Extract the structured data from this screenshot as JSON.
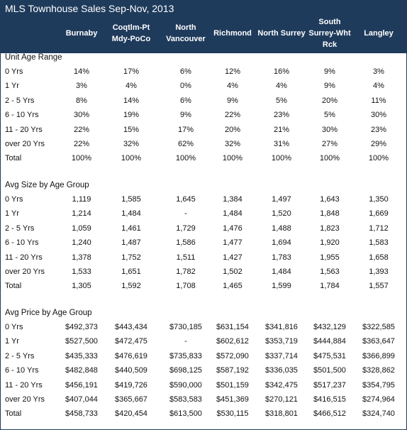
{
  "title": "MLS Townhouse Sales Sep-Nov, 2013",
  "columns": [
    {
      "line1": "Burnaby",
      "line2": ""
    },
    {
      "line1": "Coqtlm-Pt",
      "line2": "Mdy-PoCo"
    },
    {
      "line1": "North",
      "line2": "Vancouver"
    },
    {
      "line1": "Richmond",
      "line2": ""
    },
    {
      "line1": "North Surrey",
      "line2": ""
    },
    {
      "line1": "South",
      "line2": "Surrey-Wht",
      "line3": "Rck"
    },
    {
      "line1": "Langley",
      "line2": ""
    }
  ],
  "sections": [
    {
      "title": "Unit Age Range",
      "rows": [
        {
          "label": "0 Yrs",
          "values": [
            "14%",
            "17%",
            "6%",
            "12%",
            "16%",
            "9%",
            "3%"
          ]
        },
        {
          "label": "1 Yr",
          "values": [
            "3%",
            "4%",
            "0%",
            "4%",
            "4%",
            "9%",
            "4%"
          ]
        },
        {
          "label": "2 - 5 Yrs",
          "values": [
            "8%",
            "14%",
            "6%",
            "9%",
            "5%",
            "20%",
            "11%"
          ]
        },
        {
          "label": "6 - 10 Yrs",
          "values": [
            "30%",
            "19%",
            "9%",
            "22%",
            "23%",
            "5%",
            "30%"
          ]
        },
        {
          "label": "11 - 20 Yrs",
          "values": [
            "22%",
            "15%",
            "17%",
            "20%",
            "21%",
            "30%",
            "23%"
          ]
        },
        {
          "label": "over 20 Yrs",
          "values": [
            "22%",
            "32%",
            "62%",
            "32%",
            "31%",
            "27%",
            "29%"
          ]
        },
        {
          "label": "Total",
          "values": [
            "100%",
            "100%",
            "100%",
            "100%",
            "100%",
            "100%",
            "100%"
          ]
        }
      ]
    },
    {
      "title": "Avg Size by Age Group",
      "rows": [
        {
          "label": "0 Yrs",
          "values": [
            "1,119",
            "1,585",
            "1,645",
            "1,384",
            "1,497",
            "1,643",
            "1,350"
          ]
        },
        {
          "label": "1 Yr",
          "values": [
            "1,214",
            "1,484",
            "-",
            "1,484",
            "1,520",
            "1,848",
            "1,669"
          ]
        },
        {
          "label": "2 - 5 Yrs",
          "values": [
            "1,059",
            "1,461",
            "1,729",
            "1,476",
            "1,488",
            "1,823",
            "1,712"
          ]
        },
        {
          "label": "6 - 10 Yrs",
          "values": [
            "1,240",
            "1,487",
            "1,586",
            "1,477",
            "1,694",
            "1,920",
            "1,583"
          ]
        },
        {
          "label": "11 - 20 Yrs",
          "values": [
            "1,378",
            "1,752",
            "1,511",
            "1,427",
            "1,783",
            "1,955",
            "1,658"
          ]
        },
        {
          "label": "over 20 Yrs",
          "values": [
            "1,533",
            "1,651",
            "1,782",
            "1,502",
            "1,484",
            "1,563",
            "1,393"
          ]
        },
        {
          "label": "Total",
          "values": [
            "1,305",
            "1,592",
            "1,708",
            "1,465",
            "1,599",
            "1,784",
            "1,557"
          ]
        }
      ]
    },
    {
      "title": "Avg Price by Age Group",
      "rows": [
        {
          "label": "0 Yrs",
          "values": [
            "$492,373",
            "$443,434",
            "$730,185",
            "$631,154",
            "$341,816",
            "$432,129",
            "$322,585"
          ]
        },
        {
          "label": "1 Yr",
          "values": [
            "$527,500",
            "$472,475",
            "-",
            "$602,612",
            "$353,719",
            "$444,884",
            "$363,647"
          ]
        },
        {
          "label": "2 - 5 Yrs",
          "values": [
            "$435,333",
            "$476,619",
            "$735,833",
            "$572,090",
            "$337,714",
            "$475,531",
            "$366,899"
          ]
        },
        {
          "label": "6 - 10 Yrs",
          "values": [
            "$482,848",
            "$440,509",
            "$698,125",
            "$587,192",
            "$336,035",
            "$501,500",
            "$328,862"
          ]
        },
        {
          "label": "11 - 20 Yrs",
          "values": [
            "$456,191",
            "$419,726",
            "$590,000",
            "$501,159",
            "$342,475",
            "$517,237",
            "$354,795"
          ]
        },
        {
          "label": "over 20 Yrs",
          "values": [
            "$407,044",
            "$365,667",
            "$583,583",
            "$451,369",
            "$270,121",
            "$416,515",
            "$274,964"
          ]
        },
        {
          "label": "Total",
          "values": [
            "$458,733",
            "$420,454",
            "$613,500",
            "$530,115",
            "$318,801",
            "$466,512",
            "$324,740"
          ]
        }
      ]
    }
  ],
  "colors": {
    "header_bg": "#1f3b5c",
    "header_text": "#ffffff",
    "body_text": "#111111"
  }
}
